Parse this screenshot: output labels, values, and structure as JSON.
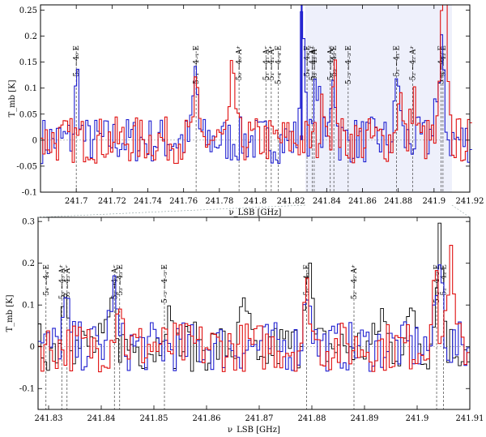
{
  "chart_data": [
    {
      "type": "line",
      "title": "",
      "xlabel": "ν_LSB [GHz]",
      "ylabel": "T_mb [K]",
      "xlim": [
        241.68,
        241.92
      ],
      "ylim": [
        -0.1,
        0.26
      ],
      "xticks": [
        "241.7",
        "241.72",
        "241.74",
        "241.76",
        "241.78",
        "241.8",
        "241.82",
        "241.84",
        "241.86",
        "241.88",
        "241.9",
        "241.92"
      ],
      "yticks": [
        "0.25",
        "0.2",
        "0.15",
        "0.1",
        "0.05",
        "0",
        "-0.05",
        "-0.1"
      ],
      "series": [
        {
          "color": "#1f1fd0",
          "x": [
            241.682,
            241.69,
            241.699,
            241.7,
            241.702,
            241.71,
            241.72,
            241.73,
            241.74,
            241.75,
            241.76,
            241.766,
            241.768,
            241.77,
            241.78,
            241.79,
            241.8,
            241.81,
            241.82,
            241.826,
            241.83,
            241.834,
            241.84,
            241.843,
            241.85,
            241.86,
            241.87,
            241.879,
            241.882,
            241.89,
            241.9,
            241.904,
            241.91,
            241.918
          ],
          "values": [
            0.03,
            -0.02,
            0.01,
            0.12,
            0.01,
            -0.03,
            0.02,
            0.0,
            -0.02,
            0.03,
            -0.01,
            0.13,
            0.02,
            -0.01,
            0.02,
            0.0,
            -0.02,
            0.03,
            0.01,
            0.25,
            0.02,
            0.12,
            0.05,
            0.14,
            0.02,
            -0.02,
            0.01,
            0.13,
            0.04,
            0.0,
            0.08,
            0.17,
            0.02,
            0.01
          ]
        },
        {
          "color": "#e01010",
          "x": [
            241.684,
            241.692,
            241.7,
            241.71,
            241.72,
            241.73,
            241.74,
            241.75,
            241.76,
            241.766,
            241.77,
            241.78,
            241.787,
            241.79,
            241.8,
            241.81,
            241.82,
            241.83,
            241.838,
            241.844,
            241.85,
            241.86,
            241.87,
            241.88,
            241.888,
            241.894,
            241.904,
            241.906,
            241.912,
            241.918
          ],
          "values": [
            -0.03,
            0.02,
            0.01,
            -0.05,
            0.03,
            -0.02,
            0.01,
            0.02,
            -0.03,
            0.09,
            0.02,
            0.01,
            0.14,
            0.03,
            -0.02,
            0.02,
            0.0,
            0.04,
            0.09,
            0.12,
            0.0,
            -0.02,
            0.03,
            0.1,
            0.09,
            0.02,
            0.2,
            0.24,
            0.0,
            0.01
          ]
        }
      ],
      "annotations": [
        {
          "label": "5₀ −4₀ E",
          "x": 241.7
        },
        {
          "label": "5₋₁ −4₋₁ E",
          "x": 241.767
        },
        {
          "label": "5₀ −4₀ A⁺",
          "x": 241.791
        },
        {
          "label": "5₁ −4₁ A⁻",
          "x": 241.806
        },
        {
          "label": "5₁ −4₁ A⁺",
          "x": 241.809
        },
        {
          "label": "5₋₄ −4₋₄ E",
          "x": 241.813
        },
        {
          "label": "5₄ −4₄ E",
          "x": 241.829
        },
        {
          "label": "5₃ −4₃ A⁺",
          "x": 241.832
        },
        {
          "label": "5₃ −4₃ A⁻",
          "x": 241.833
        },
        {
          "label": "5₂ −4₂ A⁻",
          "x": 241.842
        },
        {
          "label": "5₃ −4₃ E",
          "x": 241.844
        },
        {
          "label": "5₋₃ −4₋₃ E",
          "x": 241.852
        },
        {
          "label": "5₁ −4₁ E",
          "x": 241.879
        },
        {
          "label": "5₂ −4₂ A⁺",
          "x": 241.888
        },
        {
          "label": "5₋₂ −4₋₂ E",
          "x": 241.904
        },
        {
          "label": "5₂ −4₂ E",
          "x": 241.905
        }
      ]
    },
    {
      "type": "line",
      "title": "",
      "xlabel": "ν_LSB [GHz]",
      "ylabel": "T_mb [K]",
      "xlim": [
        241.828,
        241.91
      ],
      "ylim": [
        -0.15,
        0.31
      ],
      "xticks": [
        "241.83",
        "241.84",
        "241.85",
        "241.86",
        "241.87",
        "241.88",
        "241.89",
        "241.9",
        "241.91"
      ],
      "yticks": [
        "0.3",
        "0.2",
        "0.1",
        "0",
        "-0.1"
      ],
      "series": [
        {
          "color": "#000000",
          "x": [
            241.829,
            241.831,
            241.833,
            241.836,
            241.838,
            241.842,
            241.846,
            241.849,
            241.852,
            241.855,
            241.858,
            241.861,
            241.864,
            241.867,
            241.87,
            241.873,
            241.876,
            241.879,
            241.881,
            241.884,
            241.887,
            241.89,
            241.893,
            241.896,
            241.899,
            241.902,
            241.904,
            241.906,
            241.909
          ],
          "values": [
            0.05,
            -0.03,
            0.16,
            0.02,
            -0.05,
            0.12,
            0.03,
            -0.06,
            0.09,
            -0.04,
            0.06,
            0.02,
            -0.05,
            0.1,
            -0.08,
            0.05,
            0.02,
            0.23,
            0.06,
            -0.04,
            0.05,
            -0.03,
            0.08,
            -0.02,
            0.1,
            0.04,
            0.28,
            0.05,
            0.02
          ]
        },
        {
          "color": "#1f1fd0",
          "x": [
            241.83,
            241.833,
            241.837,
            241.842,
            241.845,
            241.85,
            241.86,
            241.87,
            241.879,
            241.882,
            241.89,
            241.9,
            241.904,
            241.906,
            241.909
          ],
          "values": [
            0.0,
            0.09,
            0.01,
            0.14,
            0.04,
            0.0,
            0.02,
            -0.01,
            0.15,
            0.03,
            0.01,
            0.02,
            0.19,
            0.05,
            0.01
          ]
        },
        {
          "color": "#e01010",
          "x": [
            241.83,
            241.833,
            241.838,
            241.843,
            241.846,
            241.852,
            241.86,
            241.87,
            241.879,
            241.882,
            241.89,
            241.9,
            241.903,
            241.906,
            241.909
          ],
          "values": [
            0.01,
            0.06,
            0.0,
            0.12,
            0.02,
            -0.02,
            0.01,
            0.0,
            0.13,
            0.03,
            0.0,
            0.02,
            0.16,
            0.2,
            0.01
          ]
        }
      ],
      "annotations": [
        {
          "label": "5₄ −4₄ E",
          "x": 241.8295
        },
        {
          "label": "5₃ −4₃ A⁺",
          "x": 241.8325
        },
        {
          "label": "5₃ −4₃ A⁻",
          "x": 241.8335
        },
        {
          "label": "5₂ −4₂ A⁻",
          "x": 241.8425
        },
        {
          "label": "5₃ −4₃ E",
          "x": 241.8435
        },
        {
          "label": "5₋₃ −4₋₃ E",
          "x": 241.852
        },
        {
          "label": "5₁ −4₁ E",
          "x": 241.879
        },
        {
          "label": "5₂ −4₂ A⁺",
          "x": 241.888
        },
        {
          "label": "5₋₂ −4₋₂ E",
          "x": 241.9037
        },
        {
          "label": "5₂ −4₂ E",
          "x": 241.905
        }
      ]
    }
  ]
}
